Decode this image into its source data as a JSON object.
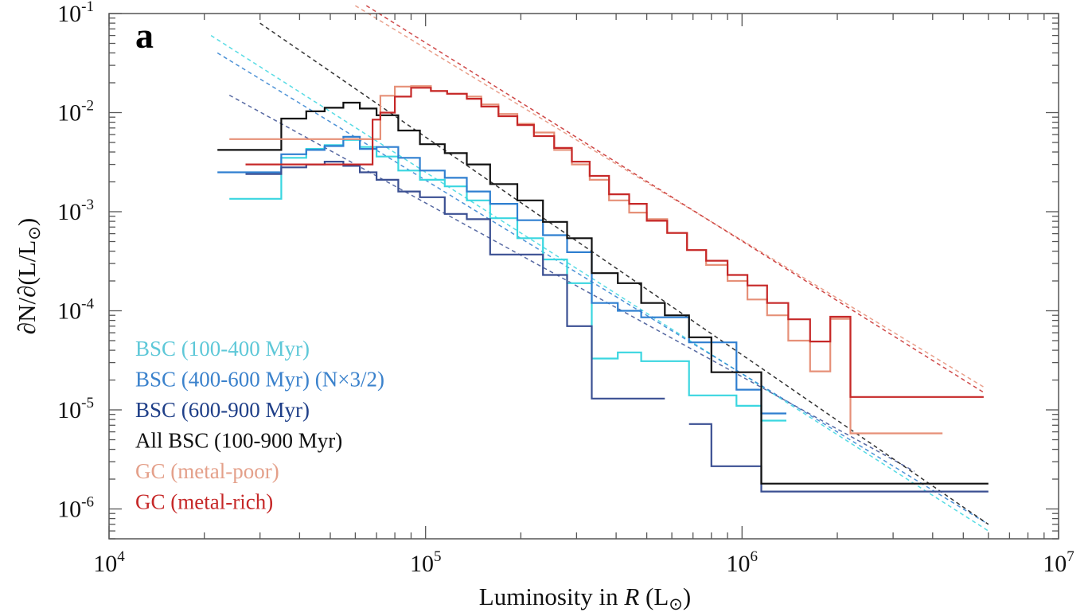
{
  "chart_data": {
    "type": "line",
    "panel_label": "a",
    "xlabel": {
      "pre": "Luminosity in ",
      "italic": "R",
      "post": " (L",
      "sub": "⊙",
      "close": ")"
    },
    "ylabel": {
      "text": "∂N/∂(L/L",
      "sub": "⊙",
      "close": ")"
    },
    "x_scale": "log",
    "y_scale": "log",
    "xlim": [
      10000,
      10000000
    ],
    "ylim": [
      5e-07,
      0.1
    ],
    "x_ticks": [
      {
        "value": 10000,
        "base": "10",
        "exp": "4"
      },
      {
        "value": 100000,
        "base": "10",
        "exp": "5"
      },
      {
        "value": 1000000,
        "base": "10",
        "exp": "6"
      },
      {
        "value": 10000000,
        "base": "10",
        "exp": "7"
      }
    ],
    "y_ticks": [
      {
        "value": 1e-06,
        "base": "10",
        "exp": "-6"
      },
      {
        "value": 1e-05,
        "base": "10",
        "exp": "-5"
      },
      {
        "value": 0.0001,
        "base": "10",
        "exp": "-4"
      },
      {
        "value": 0.001,
        "base": "10",
        "exp": "-3"
      },
      {
        "value": 0.01,
        "base": "10",
        "exp": "-2"
      },
      {
        "value": 0.1,
        "base": "10",
        "exp": "-1"
      }
    ],
    "grid": false,
    "legend_position": "bottom-left",
    "series": [
      {
        "name": "BSC (100-400 Myr)",
        "color": "#3ad6e0",
        "legend_color": "#5ec8d8",
        "style": "step",
        "edges": [
          24000,
          35000,
          42000,
          48000,
          55000,
          62000,
          70000,
          82000,
          96000,
          115000,
          135000,
          160000,
          195000,
          235000,
          280000,
          335000,
          405000,
          480000,
          570000,
          680000,
          800000,
          960000,
          1150000,
          1380000
        ],
        "values": [
          0.00135,
          0.0035,
          0.0043,
          0.0047,
          0.0053,
          0.0045,
          0.0036,
          0.0026,
          0.0021,
          0.0018,
          0.0013,
          0.00086,
          0.00054,
          0.00033,
          0.00019,
          3.3e-05,
          3.8e-05,
          3.1e-05,
          3.1e-05,
          1.4e-05,
          1.4e-05,
          1.1e-05,
          7.8e-06
        ]
      },
      {
        "name": "BSC (400-600 Myr) (N×3/2)",
        "color": "#2f7fd0",
        "legend_color": "#3b82cc",
        "style": "step",
        "edges": [
          22000,
          35000,
          42000,
          48000,
          55000,
          62000,
          70000,
          82000,
          96000,
          115000,
          135000,
          160000,
          195000,
          235000,
          280000,
          335000,
          405000,
          480000,
          570000,
          680000,
          800000,
          960000,
          1150000,
          1380000
        ],
        "values": [
          0.0025,
          0.0038,
          0.0042,
          0.0046,
          0.0057,
          0.0043,
          0.0045,
          0.0035,
          0.0026,
          0.0022,
          0.0016,
          0.0012,
          0.00082,
          0.00058,
          0.00039,
          0.00012,
          0.0001,
          8.6e-05,
          8.6e-05,
          4.8e-05,
          4.8e-05,
          1.6e-05,
          9.2e-06
        ]
      },
      {
        "name": "BSC (600-900 Myr)",
        "color": "#3a4f92",
        "legend_color": "#1f3f88",
        "style": "step",
        "edges": [
          27000,
          35000,
          42000,
          48000,
          55000,
          62000,
          70000,
          82000,
          96000,
          115000,
          135000,
          160000,
          195000,
          235000,
          280000,
          335000,
          405000,
          480000,
          570000,
          680000,
          800000,
          960000,
          1150000,
          6000000
        ],
        "values": [
          0.0024,
          0.0028,
          0.003,
          0.0032,
          0.0029,
          0.0025,
          0.0021,
          0.0016,
          0.0014,
          0.00095,
          0.00084,
          0.00037,
          0.00037,
          0.00023,
          7e-05,
          1.3e-05,
          1.3e-05,
          1.3e-05,
          null,
          7.2e-06,
          2.7e-06,
          2.7e-06,
          1.5e-06
        ]
      },
      {
        "name": "All BSC (100-900 Myr)",
        "color": "#111111",
        "legend_color": "#111111",
        "style": "step",
        "edges": [
          22000,
          35000,
          42000,
          48000,
          55000,
          62000,
          70000,
          82000,
          96000,
          115000,
          135000,
          160000,
          195000,
          235000,
          280000,
          335000,
          405000,
          480000,
          570000,
          680000,
          800000,
          960000,
          1150000,
          6000000
        ],
        "values": [
          0.0042,
          0.0087,
          0.0103,
          0.0112,
          0.0126,
          0.011,
          0.0094,
          0.0066,
          0.0048,
          0.0039,
          0.003,
          0.0019,
          0.0013,
          0.00079,
          0.00054,
          0.00024,
          0.00019,
          0.00012,
          9e-05,
          5.4e-05,
          2.4e-05,
          2.4e-05,
          1.8e-06
        ]
      },
      {
        "name": "GC (metal-poor)",
        "color": "#e69078",
        "legend_color": "#e4a08a",
        "style": "step",
        "edges": [
          24000,
          35000,
          42000,
          48000,
          55000,
          62000,
          68000,
          72000,
          80000,
          90000,
          104000,
          117000,
          135000,
          150000,
          170000,
          195000,
          220000,
          255000,
          290000,
          330000,
          380000,
          440000,
          500000,
          580000,
          670000,
          770000,
          900000,
          1040000,
          1200000,
          1400000,
          1640000,
          1900000,
          2200000,
          4300000
        ],
        "values": [
          0.0054,
          0.0054,
          0.0054,
          0.0054,
          0.0054,
          0.0054,
          0.0054,
          0.0148,
          0.0183,
          0.0185,
          0.0165,
          0.0155,
          0.0145,
          0.0121,
          0.0097,
          0.0077,
          0.0063,
          0.0042,
          0.003,
          0.0021,
          0.0013,
          0.00098,
          0.00084,
          0.00061,
          0.00041,
          0.00029,
          0.0002,
          0.00013,
          9e-05,
          5e-05,
          2.45e-05,
          8.3e-05,
          5.8e-06
        ]
      },
      {
        "name": "GC (metal-rich)",
        "color": "#c62828",
        "legend_color": "#c62828",
        "style": "step",
        "edges": [
          27000,
          35000,
          42000,
          48000,
          55000,
          62000,
          68000,
          72000,
          80000,
          90000,
          104000,
          117000,
          135000,
          150000,
          170000,
          195000,
          220000,
          255000,
          290000,
          330000,
          380000,
          440000,
          500000,
          580000,
          670000,
          770000,
          900000,
          1040000,
          1200000,
          1400000,
          1640000,
          1900000,
          2200000,
          5800000
        ],
        "values": [
          0.003,
          0.003,
          0.003,
          0.003,
          0.003,
          0.003,
          0.0085,
          0.01,
          0.0145,
          0.0178,
          0.0165,
          0.0155,
          0.0138,
          0.0115,
          0.0092,
          0.0075,
          0.0058,
          0.0044,
          0.0032,
          0.0023,
          0.0015,
          0.0012,
          0.00081,
          0.00061,
          0.00041,
          0.00032,
          0.00023,
          0.00018,
          0.00012,
          8.2e-05,
          4.9e-05,
          8.7e-05,
          1.35e-05
        ]
      }
    ],
    "fits": [
      {
        "color": "#3ad6e0",
        "points": [
          [
            21000,
            0.06
          ],
          [
            6000000,
            6e-07
          ]
        ]
      },
      {
        "color": "#2f7fd0",
        "points": [
          [
            22000,
            0.04
          ],
          [
            6000000,
            7e-07
          ]
        ]
      },
      {
        "color": "#3a4f92",
        "points": [
          [
            24000,
            0.015
          ],
          [
            3500000,
            2.4e-06
          ]
        ]
      },
      {
        "color": "#111111",
        "points": [
          [
            30000,
            0.08
          ],
          [
            6000000,
            7e-07
          ]
        ]
      },
      {
        "color": "#e69078",
        "points": [
          [
            60000,
            0.12
          ],
          [
            5800000,
            1.7e-05
          ]
        ]
      },
      {
        "color": "#c62828",
        "points": [
          [
            65000,
            0.12
          ],
          [
            5800000,
            1.5e-05
          ]
        ]
      }
    ]
  }
}
